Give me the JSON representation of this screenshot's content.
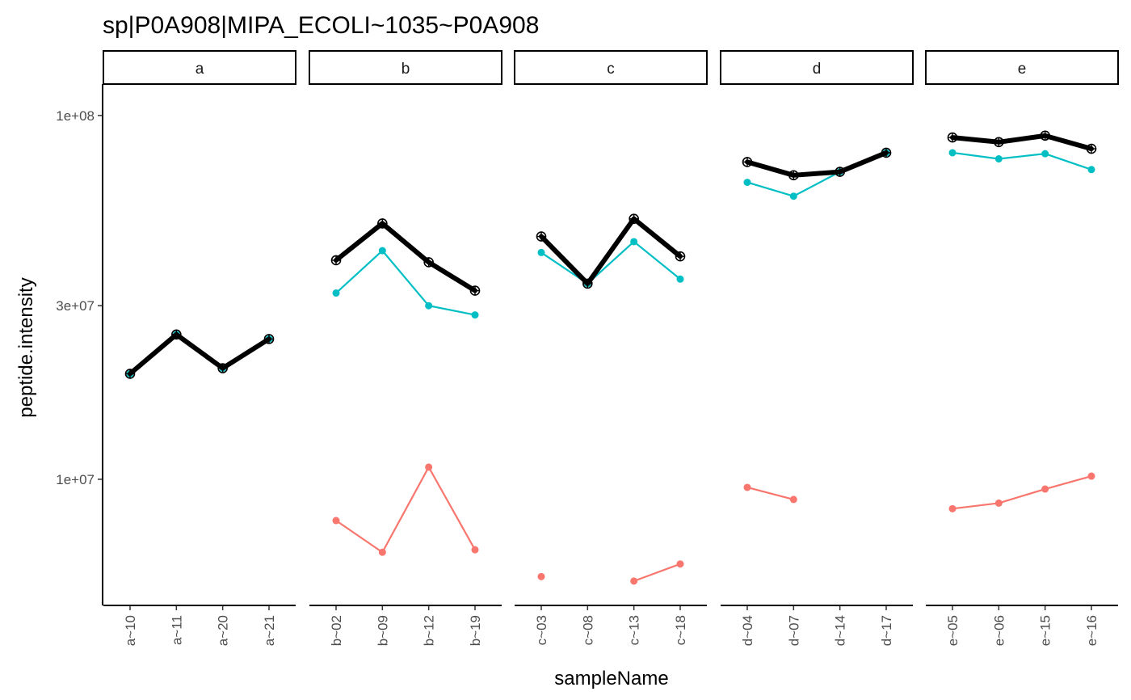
{
  "chart_data": {
    "type": "line",
    "title": "sp|P0A908|MIPA_ECOLI~1035~P0A908",
    "xlabel": "sampleName",
    "ylabel": "peptide.intensity",
    "y_scale": "log10",
    "ylim": [
      4500000,
      122000000
    ],
    "y_ticks": [
      {
        "value": 10000000,
        "label": "1e+07"
      },
      {
        "value": 30000000,
        "label": "3e+07"
      },
      {
        "value": 100000000,
        "label": "1e+08"
      }
    ],
    "legend": "none",
    "grid": false,
    "series_colors": {
      "protein": "#000000",
      "peptide_red": "#F8766D",
      "peptide_teal": "#00BFC4"
    },
    "facets": [
      {
        "label": "a",
        "samples": [
          "a~10",
          "a~11",
          "a~20",
          "a~21"
        ],
        "series": [
          {
            "values": [
              19500000,
              25000000,
              20200000,
              24300000
            ],
            "color": "#000000",
            "role": "protein"
          },
          {
            "values": [
              19500000,
              25000000,
              20200000,
              24300000
            ],
            "color": "#00BFC4",
            "role": "peptide"
          }
        ]
      },
      {
        "label": "b",
        "samples": [
          "b~02",
          "b~09",
          "b~12",
          "b~19"
        ],
        "series": [
          {
            "values": [
              40000000,
              50500000,
              39500000,
              33000000
            ],
            "color": "#000000",
            "role": "protein"
          },
          {
            "values": [
              32500000,
              42500000,
              30000000,
              28300000
            ],
            "color": "#00BFC4",
            "role": "peptide"
          },
          {
            "values": [
              7700000,
              6300000,
              10800000,
              6400000
            ],
            "color": "#F8766D",
            "role": "peptide"
          }
        ]
      },
      {
        "label": "c",
        "samples": [
          "c~03",
          "c~08",
          "c~13",
          "c~18"
        ],
        "series": [
          {
            "values": [
              46500000,
              34500000,
              52000000,
              41000000
            ],
            "color": "#000000",
            "role": "protein"
          },
          {
            "values": [
              42000000,
              34500000,
              45000000,
              35500000
            ],
            "color": "#00BFC4",
            "role": "peptide"
          },
          {
            "values": [
              5400000,
              null,
              5250000,
              5850000
            ],
            "color": "#F8766D",
            "role": "peptide"
          }
        ]
      },
      {
        "label": "d",
        "samples": [
          "d~04",
          "d~07",
          "d~14",
          "d~17"
        ],
        "series": [
          {
            "values": [
              74500000,
              68500000,
              70000000,
              79000000
            ],
            "color": "#000000",
            "role": "protein"
          },
          {
            "values": [
              65500000,
              60000000,
              70000000,
              79000000
            ],
            "color": "#00BFC4",
            "role": "peptide"
          },
          {
            "values": [
              9500000,
              8800000,
              null,
              null
            ],
            "color": "#F8766D",
            "role": "peptide"
          }
        ]
      },
      {
        "label": "e",
        "samples": [
          "e~05",
          "e~06",
          "e~15",
          "e~16"
        ],
        "series": [
          {
            "values": [
              87000000,
              84500000,
              88000000,
              81000000
            ],
            "color": "#000000",
            "role": "protein"
          },
          {
            "values": [
              79000000,
              76000000,
              78500000,
              71000000
            ],
            "color": "#00BFC4",
            "role": "peptide"
          },
          {
            "values": [
              8300000,
              8600000,
              9400000,
              10200000
            ],
            "color": "#F8766D",
            "role": "peptide"
          }
        ]
      }
    ]
  }
}
